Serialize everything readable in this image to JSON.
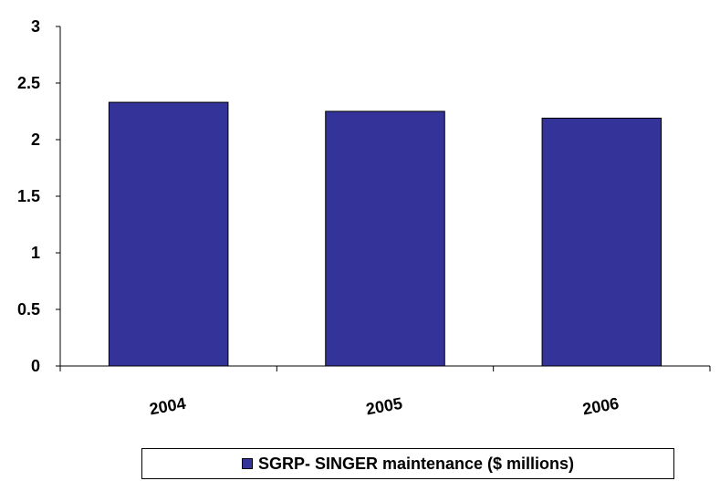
{
  "chart_data": {
    "type": "bar",
    "categories": [
      "2004",
      "2005",
      "2006"
    ],
    "series": [
      {
        "name": "SGRP- SINGER maintenance ($ millions)",
        "values": [
          2.33,
          2.25,
          2.19
        ]
      }
    ],
    "ylim": [
      0,
      3
    ],
    "yticks": [
      "0",
      "0.5",
      "1",
      "1.5",
      "2",
      "2.5",
      "3"
    ],
    "ytick_values": [
      0,
      0.5,
      1,
      1.5,
      2,
      2.5,
      3
    ],
    "grid": false,
    "legend_position": "bottom",
    "bar_color": "#333399",
    "outline_color": "#000000"
  }
}
